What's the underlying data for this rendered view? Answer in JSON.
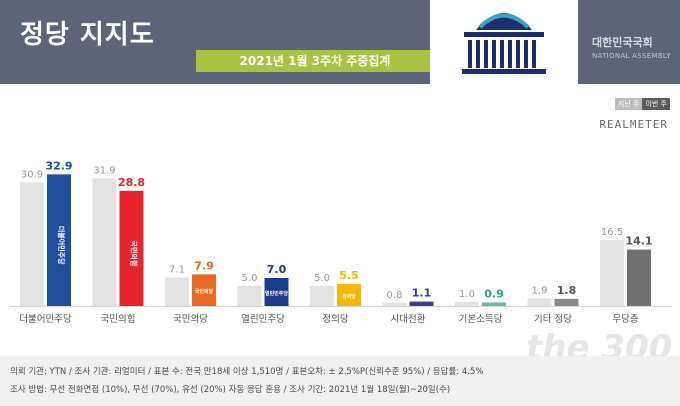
{
  "header": {
    "title": "정당 지지도",
    "subtitle": "2021년 1월 3주차 주중집계",
    "assembly_name": "대한민국국회",
    "assembly_en": "NATIONAL ASSEMBLY"
  },
  "legend": {
    "prev": "지난 주",
    "curr": "이번 주"
  },
  "brand": "REALMETER",
  "watermark": "the 300",
  "footnote": {
    "line1": "의뢰 기관: YTN / 조사 기관: 리얼미터 / 표본 수: 전국 만18세 이상 1,510명 / 표본오차: ± 2.5%P(신뢰수준 95%) / 응답률: 4.5%",
    "line2": "조사 방법: 무선 전화면접 (10%), 무선 (70%), 유선 (20%) 자동 응답 혼용 / 조사 기간: 2021년 1월 18일(월)~20일(수)"
  },
  "colors": {
    "header": "#5d6479",
    "subtitle_bg": "#a9c23f",
    "prev_bar": "#e3e3e3",
    "dem": "#1f4e9c",
    "ppp": "#e6242b",
    "people": "#e86b1f",
    "open": "#1a3c8c",
    "justice": "#f5b800",
    "era": "#3d3b8e",
    "basic": "#5bbfa5",
    "other": "#8a8a8a",
    "none": "#707070"
  },
  "chart_data": {
    "type": "bar",
    "categories": [
      "더불어민주당",
      "국민의힘",
      "국민의당",
      "열린민주당",
      "정의당",
      "시대전환",
      "기본소득당",
      "기타 정당",
      "무당층"
    ],
    "series": [
      {
        "name": "지난 주",
        "values": [
          30.9,
          31.9,
          7.1,
          5.0,
          5.0,
          0.8,
          1.0,
          1.9,
          16.5
        ]
      },
      {
        "name": "이번 주",
        "values": [
          32.9,
          28.8,
          7.9,
          7.0,
          5.5,
          1.1,
          0.9,
          1.8,
          14.1
        ]
      }
    ],
    "bar_colors": [
      "#1f4e9c",
      "#e6242b",
      "#e86b1f",
      "#1a3c8c",
      "#f5b800",
      "#3d3b8e",
      "#5bbfa5",
      "#8a8a8a",
      "#707070"
    ],
    "label_colors": [
      "#1f4e9c",
      "#e6242b",
      "#e86b1f",
      "#1a3c8c",
      "#f5b800",
      "#3d3b8e",
      "#2f9d7f",
      "#555555",
      "#555555"
    ],
    "inside_labels": [
      "더불어민주당",
      "국민의힘",
      "국민의당",
      "열린민주당",
      "정의당",
      "",
      "",
      "",
      ""
    ],
    "ylim": [
      0,
      40
    ],
    "grid": false,
    "legend": "top-right"
  }
}
